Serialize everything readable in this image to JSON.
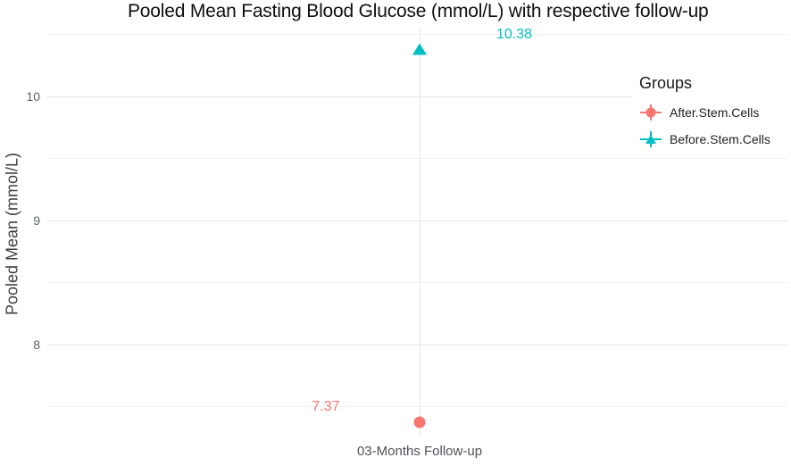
{
  "chart_data": {
    "type": "scatter",
    "title": "Pooled Mean Fasting Blood Glucose (mmol/L) with respective follow-up",
    "ylabel": "Pooled Mean (mmol/L)",
    "xlabel": "",
    "categories": [
      "03-Months Follow-up"
    ],
    "series": [
      {
        "name": "After.Stem.Cells",
        "shape": "circle",
        "color": "#F8766D",
        "values": [
          7.37
        ]
      },
      {
        "name": "Before.Stem.Cells",
        "shape": "triangle",
        "color": "#00BFC4",
        "values": [
          10.38
        ]
      }
    ],
    "data_labels": [
      "7.37",
      "10.38"
    ],
    "ylim": [
      7.25,
      10.56
    ],
    "yticks_major": [
      8,
      9,
      10
    ],
    "yticks_minor": [
      7.5,
      8.5,
      9.5,
      10.5
    ],
    "grid": "major+minor",
    "grid_color_major": "#e4e4e4",
    "grid_color_minor": "#f2f2f2",
    "legend_title": "Groups",
    "legend_position": "inside-top-right",
    "background": "#ffffff"
  }
}
